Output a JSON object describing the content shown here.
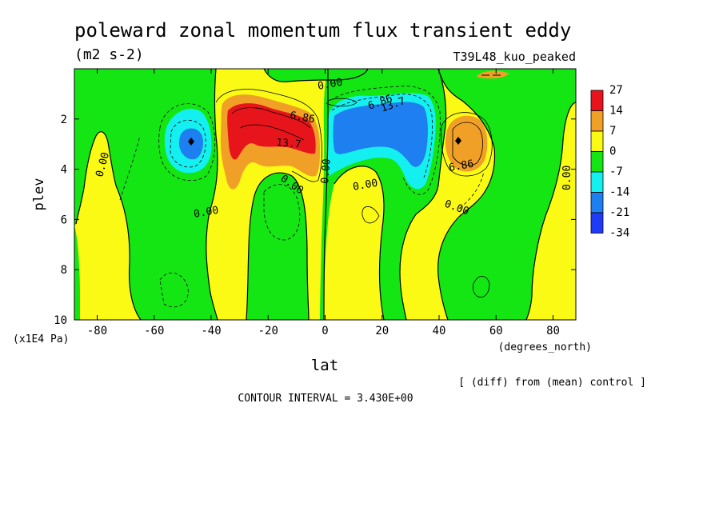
{
  "chart_data": {
    "type": "heatmap",
    "title": "poleward zonal momentum flux transient eddy",
    "units": "(m2 s-2)",
    "run_label": "T39L48_kuo_peaked",
    "xlabel": "lat",
    "x_units": "(degrees_north)",
    "ylabel": "plev",
    "y_units": "(x1E4 Pa)",
    "xlim": [
      -88,
      88
    ],
    "ylim": [
      0,
      10
    ],
    "x_ticks": [
      "-80",
      "-60",
      "-40",
      "-20",
      "0",
      "20",
      "40",
      "60",
      "80"
    ],
    "y_ticks": [
      "2",
      "4",
      "6",
      "8",
      "10"
    ],
    "colorbar_levels": [
      "27",
      "14",
      "7",
      "0",
      "-7",
      "-14",
      "-21",
      "-34"
    ],
    "colors": {
      "gt_14": "#e8141c",
      "7_to_14": "#f0a026",
      "0_to_7": "#fafa14",
      "neg7_to_0": "#14e614",
      "neg14_to_neg7": "#14f0f0",
      "neg21_to_neg14": "#1e7ff0",
      "lt_neg21": "#1e3cf5"
    },
    "contour_labels": [
      "0.00",
      "0.00",
      "0.00",
      "0.00",
      "0.00",
      "0.00",
      "0.00",
      "0.00",
      "6.86",
      "13.7",
      "6.86",
      "13.7",
      "6.86"
    ],
    "note": "[ (diff) from (mean) control ]",
    "contour_interval": "CONTOUR INTERVAL = 3.430E+00"
  }
}
